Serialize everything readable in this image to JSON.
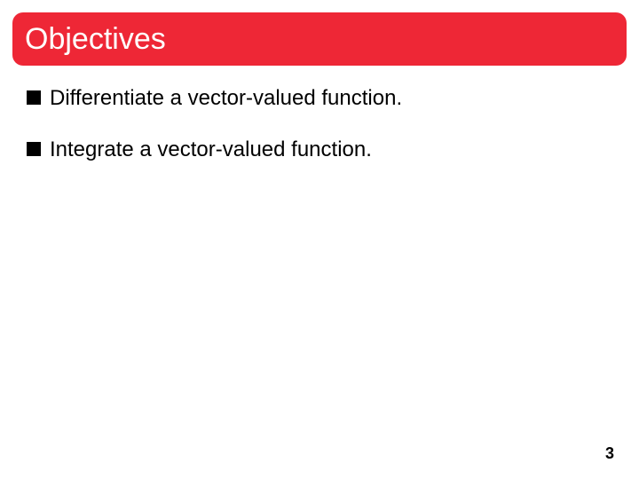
{
  "header": {
    "title": "Objectives",
    "background_color": "#ee2736",
    "title_color": "#ffffff",
    "title_fontsize": 34,
    "border_radius": 12
  },
  "bullets": {
    "marker_color": "#000000",
    "marker_size": 16,
    "text_color": "#000000",
    "text_fontsize": 24,
    "items": [
      {
        "text": "Differentiate a vector-valued function."
      },
      {
        "text": "Integrate a vector-valued function."
      }
    ]
  },
  "page_number": "3",
  "background_color": "#ffffff"
}
